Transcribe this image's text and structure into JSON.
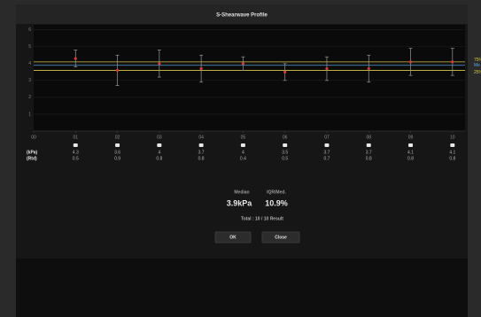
{
  "chart_data": {
    "type": "errorbar",
    "title": "S-Shearwave Profile",
    "x": [
      1,
      2,
      3,
      4,
      5,
      6,
      7,
      8,
      9,
      10
    ],
    "values": [
      4.3,
      3.6,
      4.0,
      3.7,
      4.0,
      3.5,
      3.7,
      3.7,
      4.1,
      4.1
    ],
    "errors": [
      0.5,
      0.9,
      0.8,
      0.8,
      0.4,
      0.5,
      0.7,
      0.8,
      0.8,
      0.8
    ],
    "point_color": "#d23a3a",
    "bar_color": "#9a9a9a",
    "xlim": [
      0,
      10.3
    ],
    "xticks": [
      {
        "value": 0,
        "label": "00"
      },
      {
        "value": 1,
        "label": "01"
      },
      {
        "value": 2,
        "label": "02"
      },
      {
        "value": 3,
        "label": "03"
      },
      {
        "value": 4,
        "label": "04"
      },
      {
        "value": 5,
        "label": "05"
      },
      {
        "value": 6,
        "label": "06"
      },
      {
        "value": 7,
        "label": "07"
      },
      {
        "value": 8,
        "label": "08"
      },
      {
        "value": 9,
        "label": "09"
      },
      {
        "value": 10,
        "label": "10"
      }
    ],
    "ylim": [
      0,
      6.3
    ],
    "yticks": [
      1,
      2,
      3,
      4,
      5,
      6
    ],
    "grid": true,
    "reference_lines": [
      {
        "label": "75%",
        "value": 4.1,
        "color": "#d8c84a"
      },
      {
        "label": "Me",
        "value": 3.9,
        "color": "#5aa0d8"
      },
      {
        "label": "25%",
        "value": 3.6,
        "color": "#d8c84a"
      }
    ],
    "row_labels": [
      "(kPa)",
      "(Rtd)"
    ]
  },
  "summary": {
    "median_label": "Median",
    "iqr_label": "IQR/Med.",
    "median_value": "3.9kPa",
    "iqr_value": "10.9%",
    "total": "Total : 10 / 10 Result"
  },
  "buttons": {
    "ok": "OK",
    "close": "Close"
  }
}
